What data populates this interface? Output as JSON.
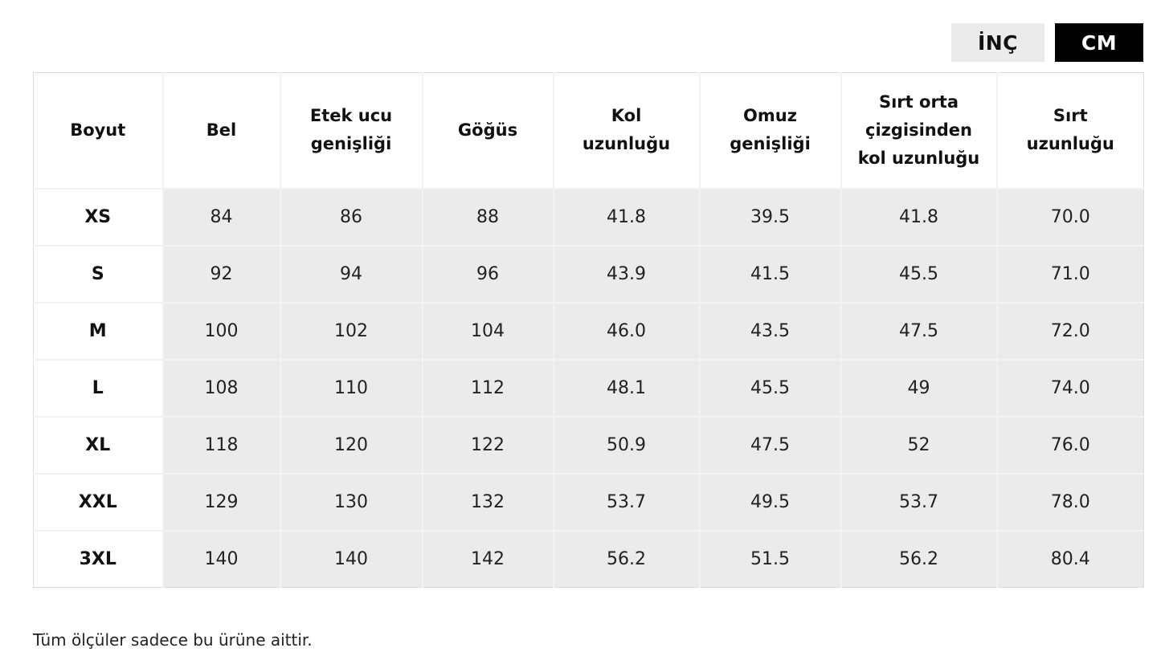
{
  "unit_toggle": {
    "inch_label": "İNÇ",
    "cm_label": "CM",
    "selected": "CM"
  },
  "table": {
    "headers": [
      [
        "Boyut"
      ],
      [
        "Bel"
      ],
      [
        "Etek ucu",
        "genişliği"
      ],
      [
        "Göğüs"
      ],
      [
        "Kol",
        "uzunluğu"
      ],
      [
        "Omuz",
        "genişliği"
      ],
      [
        "Sırt orta",
        "çizgisinden",
        "kol uzunluğu"
      ],
      [
        "Sırt",
        "uzunluğu"
      ]
    ],
    "rows": [
      [
        "XS",
        "84",
        "86",
        "88",
        "41.8",
        "39.5",
        "41.8",
        "70.0"
      ],
      [
        "S",
        "92",
        "94",
        "96",
        "43.9",
        "41.5",
        "45.5",
        "71.0"
      ],
      [
        "M",
        "100",
        "102",
        "104",
        "46.0",
        "43.5",
        "47.5",
        "72.0"
      ],
      [
        "L",
        "108",
        "110",
        "112",
        "48.1",
        "45.5",
        "49",
        "74.0"
      ],
      [
        "XL",
        "118",
        "120",
        "122",
        "50.9",
        "47.5",
        "52",
        "76.0"
      ],
      [
        "XXL",
        "129",
        "130",
        "132",
        "53.7",
        "49.5",
        "53.7",
        "78.0"
      ],
      [
        "3XL",
        "140",
        "140",
        "142",
        "56.2",
        "51.5",
        "56.2",
        "80.4"
      ]
    ]
  },
  "footnote": "Tüm ölçüler sadece bu ürüne aittir.",
  "colors": {
    "selected_toggle_bg": "#000000",
    "unselected_toggle_bg": "#ebebeb",
    "value_cell_bg": "#ebebeb"
  }
}
